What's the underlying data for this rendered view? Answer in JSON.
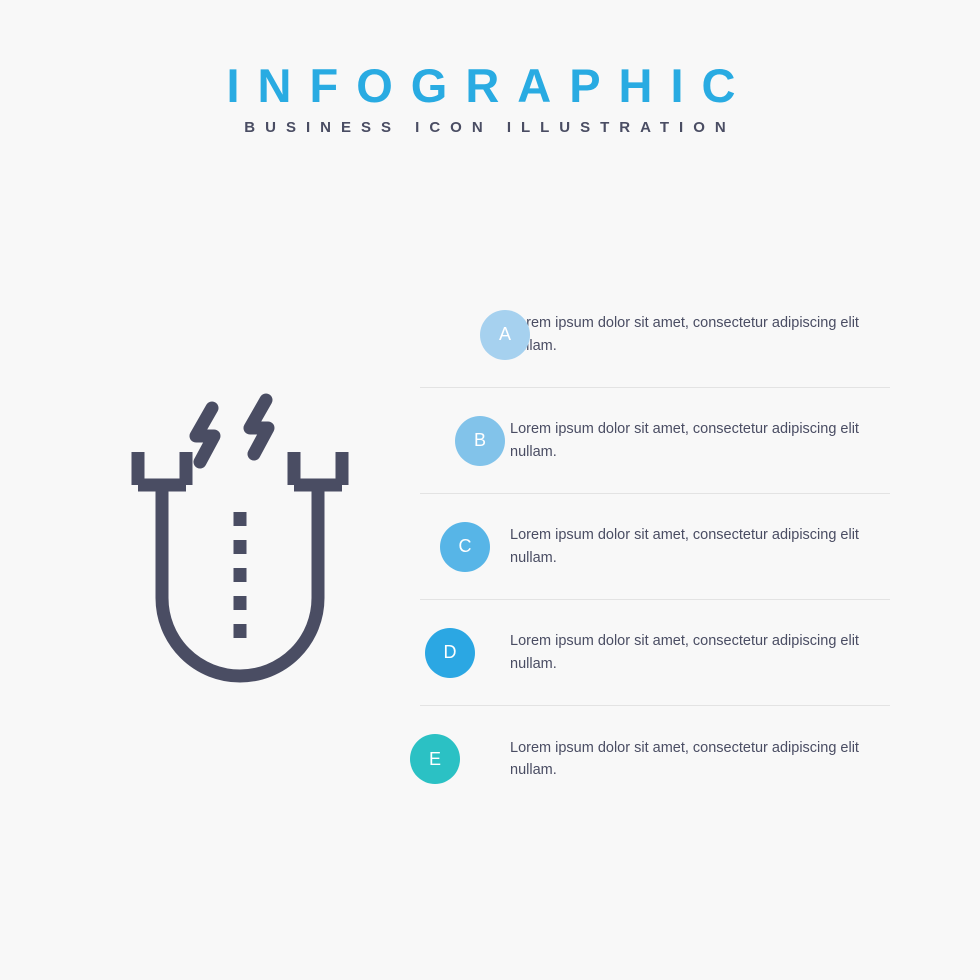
{
  "header": {
    "title": "INFOGRAPHIC",
    "title_color": "#29abe2",
    "subtitle": "BUSINESS ICON ILLUSTRATION",
    "subtitle_color": "#4a4d63"
  },
  "background_color": "#f8f8f8",
  "icon": {
    "name": "magnet-icon",
    "stroke_color": "#4a4d63",
    "stroke_width": 13
  },
  "steps": {
    "text_color": "#4a4d63",
    "divider_color": "#e3e3e3",
    "badge_text_color": "#ffffff",
    "badge_left_offsets": [
      60,
      35,
      20,
      5,
      -10
    ],
    "items": [
      {
        "letter": "A",
        "color": "#a6d1ef",
        "text": "Lorem ipsum dolor sit amet, consectetur adipiscing elit nullam."
      },
      {
        "letter": "B",
        "color": "#82c3ea",
        "text": "Lorem ipsum dolor sit amet, consectetur adipiscing elit nullam."
      },
      {
        "letter": "C",
        "color": "#57b5e7",
        "text": "Lorem ipsum dolor sit amet, consectetur adipiscing elit nullam."
      },
      {
        "letter": "D",
        "color": "#2ba7e3",
        "text": "Lorem ipsum dolor sit amet, consectetur adipiscing elit nullam."
      },
      {
        "letter": "E",
        "color": "#2bc1c4",
        "text": "Lorem ipsum dolor sit amet, consectetur adipiscing elit nullam."
      }
    ]
  }
}
